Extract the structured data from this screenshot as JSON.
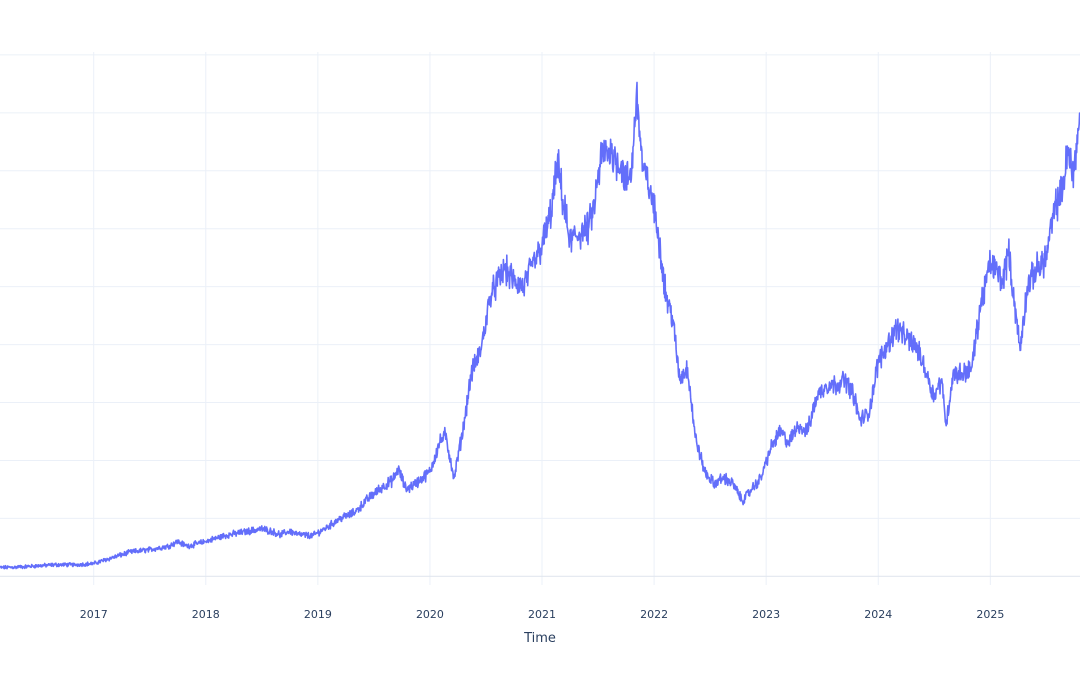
{
  "chart_data": {
    "type": "line",
    "title": "",
    "xlabel": "Time",
    "ylabel": "",
    "x_tick_labels": [
      "2017",
      "2018",
      "2019",
      "2020",
      "2021",
      "2022",
      "2023",
      "2024",
      "2025"
    ],
    "x_tick_years": [
      2017,
      2018,
      2019,
      2020,
      2021,
      2022,
      2023,
      2024,
      2025
    ],
    "xlim": [
      "2016-03-01",
      "2025-10-20"
    ],
    "ylim": [
      -0.15,
      9.05
    ],
    "y_gridlines": [
      0,
      1,
      2,
      3,
      4,
      5,
      6,
      7,
      8,
      9
    ],
    "grid": true,
    "line_color": "#636efa",
    "series": [
      {
        "x": [
          "2016-03-01",
          "2016-05-01",
          "2016-07-01",
          "2016-09-01",
          "2016-11-01",
          "2017-01-01",
          "2017-03-01",
          "2017-05-01",
          "2017-07-01",
          "2017-09-01",
          "2017-10-01",
          "2017-11-01",
          "2018-01-01",
          "2018-03-01",
          "2018-05-01",
          "2018-07-01",
          "2018-08-01",
          "2018-09-01",
          "2018-10-01",
          "2018-11-01",
          "2018-12-15",
          "2019-02-01",
          "2019-03-15",
          "2019-05-01",
          "2019-06-15",
          "2019-08-01",
          "2019-09-01",
          "2019-09-20",
          "2019-10-15",
          "2019-11-15",
          "2020-01-01",
          "2020-02-01",
          "2020-02-20",
          "2020-03-20",
          "2020-04-20",
          "2020-05-15",
          "2020-06-15",
          "2020-07-15",
          "2020-08-01",
          "2020-09-01",
          "2020-10-01",
          "2020-11-01",
          "2020-12-01",
          "2021-01-01",
          "2021-02-01",
          "2021-02-20",
          "2021-03-10",
          "2021-04-01",
          "2021-05-01",
          "2021-06-01",
          "2021-06-20",
          "2021-07-15",
          "2021-08-15",
          "2021-09-15",
          "2021-10-01",
          "2021-10-20",
          "2021-11-05",
          "2021-11-25",
          "2021-12-20",
          "2022-01-15",
          "2022-02-10",
          "2022-03-01",
          "2022-03-25",
          "2022-04-20",
          "2022-05-15",
          "2022-06-15",
          "2022-07-15",
          "2022-08-15",
          "2022-09-15",
          "2022-10-15",
          "2022-11-15",
          "2022-12-15",
          "2023-01-15",
          "2023-02-15",
          "2023-03-15",
          "2023-04-15",
          "2023-05-15",
          "2023-06-15",
          "2023-07-15",
          "2023-08-15",
          "2023-09-15",
          "2023-10-15",
          "2023-11-01",
          "2023-12-01",
          "2024-01-01",
          "2024-02-01",
          "2024-03-01",
          "2024-04-01",
          "2024-05-01",
          "2024-06-01",
          "2024-07-01",
          "2024-07-25",
          "2024-08-10",
          "2024-09-01",
          "2024-10-01",
          "2024-11-01",
          "2024-12-01",
          "2025-01-01",
          "2025-01-20",
          "2025-02-10",
          "2025-03-01",
          "2025-04-08",
          "2025-05-01",
          "2025-06-01",
          "2025-07-01",
          "2025-08-01",
          "2025-08-20",
          "2025-09-10",
          "2025-10-01",
          "2025-10-20"
        ],
        "y": [
          0.15,
          0.16,
          0.18,
          0.2,
          0.2,
          0.22,
          0.32,
          0.42,
          0.46,
          0.52,
          0.6,
          0.52,
          0.6,
          0.7,
          0.76,
          0.82,
          0.78,
          0.72,
          0.78,
          0.72,
          0.7,
          0.85,
          1.0,
          1.1,
          1.35,
          1.55,
          1.65,
          1.85,
          1.5,
          1.6,
          1.8,
          2.3,
          2.45,
          1.7,
          2.6,
          3.5,
          3.9,
          4.8,
          5.0,
          5.3,
          5.1,
          5.0,
          5.35,
          5.7,
          6.3,
          7.15,
          6.5,
          5.8,
          5.9,
          6.0,
          6.4,
          7.3,
          7.3,
          7.1,
          6.8,
          7.0,
          8.4,
          7.0,
          6.7,
          5.9,
          4.8,
          4.5,
          3.4,
          3.6,
          2.4,
          1.8,
          1.6,
          1.7,
          1.6,
          1.3,
          1.5,
          1.7,
          2.2,
          2.5,
          2.3,
          2.6,
          2.5,
          3.1,
          3.3,
          3.3,
          3.4,
          3.1,
          2.7,
          2.8,
          3.7,
          4.0,
          4.3,
          4.1,
          4.0,
          3.6,
          3.1,
          3.4,
          2.6,
          3.5,
          3.5,
          3.6,
          4.7,
          5.4,
          5.3,
          5.1,
          5.6,
          3.9,
          5.0,
          5.3,
          5.5,
          6.4,
          6.6,
          7.3,
          7.0,
          8.0
        ]
      }
    ]
  }
}
